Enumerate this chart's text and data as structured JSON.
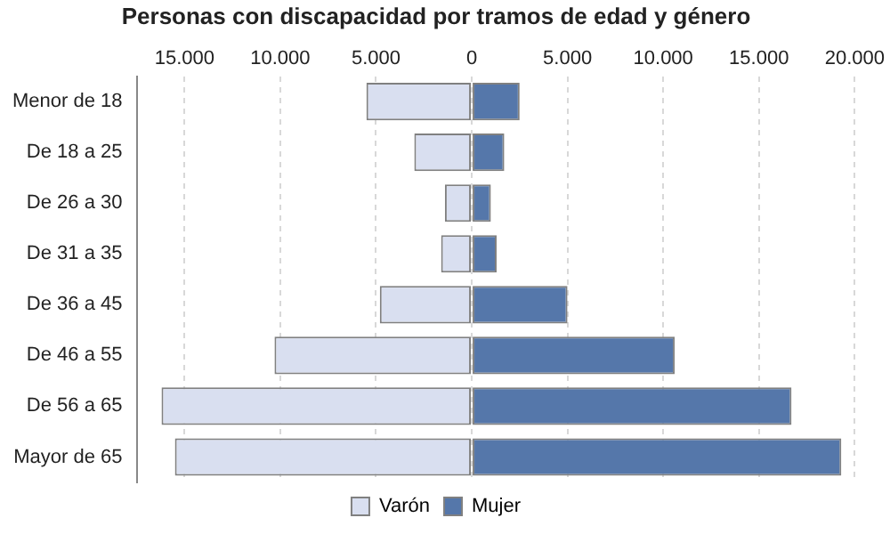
{
  "chart_data": {
    "type": "bar",
    "orientation": "horizontal",
    "stacked": true,
    "title": "Personas con discapacidad por tramos de edad y género",
    "categories": [
      "Menor de 18",
      "De 18 a 25",
      "De 26 a 30",
      "De 31 a 35",
      "De 36 a 45",
      "De 46 a 55",
      "De 56 a 65",
      "Mayor de 65"
    ],
    "series": [
      {
        "name": "Varón",
        "color": "#d9dff0",
        "values": [
          -5500,
          -3000,
          -1400,
          -1600,
          -4800,
          -10300,
          -16200,
          -15500
        ]
      },
      {
        "name": "Mujer",
        "color": "#5577aa",
        "values": [
          2500,
          1700,
          1000,
          1300,
          5000,
          10600,
          16700,
          19300
        ]
      }
    ],
    "xlim": [
      -17500,
      20000
    ],
    "xticks": [
      {
        "value": -15000,
        "label": "15.000"
      },
      {
        "value": -10000,
        "label": "10.000"
      },
      {
        "value": -5000,
        "label": "5.000"
      },
      0,
      {
        "value": 5000,
        "label": "5.000"
      },
      {
        "value": 10000,
        "label": "10.000"
      },
      {
        "value": 15000,
        "label": "15.000"
      },
      {
        "value": 20000,
        "label": "20.000"
      }
    ],
    "grid": "x",
    "legend": "bottom"
  }
}
